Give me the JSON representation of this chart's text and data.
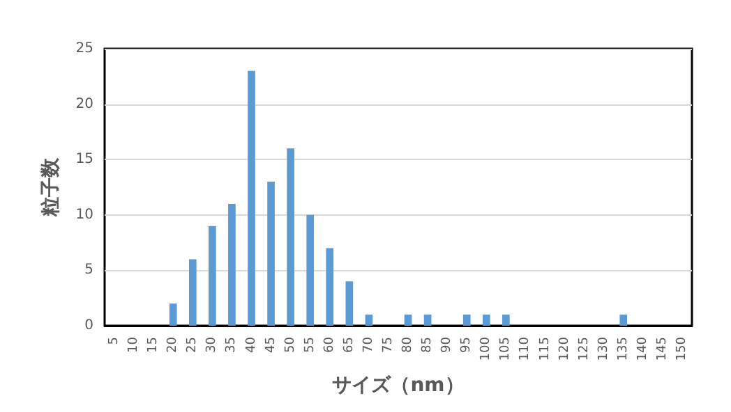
{
  "chart_data": {
    "type": "bar",
    "xlabel": "サイズ（nm）",
    "ylabel": "粒子数",
    "categories": [
      "5",
      "10",
      "15",
      "20",
      "25",
      "30",
      "35",
      "40",
      "45",
      "50",
      "55",
      "60",
      "65",
      "70",
      "75",
      "80",
      "85",
      "90",
      "95",
      "100",
      "105",
      "110",
      "115",
      "120",
      "125",
      "130",
      "135",
      "140",
      "145",
      "150"
    ],
    "values": [
      0,
      0,
      0,
      2,
      6,
      9,
      11,
      23,
      13,
      16,
      10,
      7,
      4,
      1,
      0,
      1,
      1,
      0,
      1,
      1,
      1,
      0,
      0,
      0,
      0,
      0,
      1,
      0,
      0,
      0
    ],
    "color": "#5b9bd5",
    "ylim": [
      0,
      25
    ],
    "yticks": [
      0,
      5,
      10,
      15,
      20,
      25
    ],
    "grid": "y"
  }
}
